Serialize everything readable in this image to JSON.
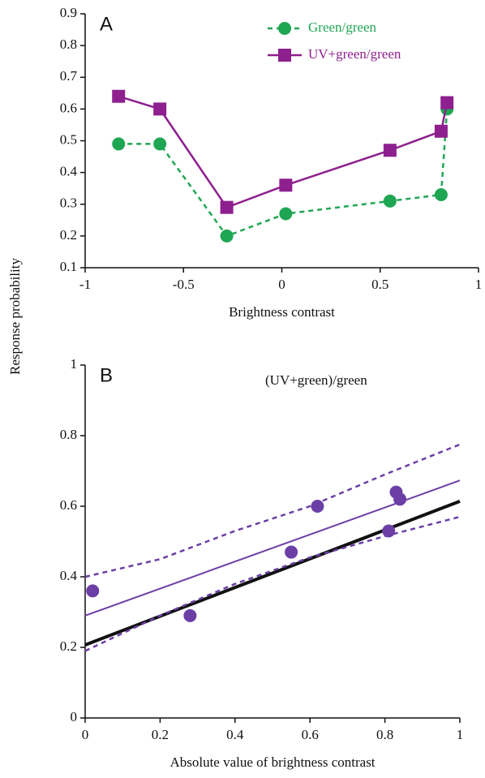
{
  "chart_data": [
    {
      "type": "line",
      "panel_label": "A",
      "ylabel": "Response probability",
      "xlabel": "Brightness contrast",
      "x": [
        -0.83,
        -0.62,
        -0.28,
        0.02,
        0.55,
        0.81,
        0.84
      ],
      "series": [
        {
          "name": "Green/green",
          "color": "#1fa653",
          "marker": "circle",
          "dash": true,
          "values": [
            0.49,
            0.49,
            0.2,
            0.27,
            0.31,
            0.33,
            0.6
          ]
        },
        {
          "name": "UV+green/green",
          "color": "#8e1f8e",
          "marker": "square",
          "dash": false,
          "values": [
            0.64,
            0.6,
            0.29,
            0.36,
            0.47,
            0.53,
            0.62
          ]
        }
      ],
      "xlim": [
        -1,
        1
      ],
      "xticks": [
        -1,
        -0.5,
        0,
        0.5,
        1
      ],
      "ylim": [
        0.1,
        0.9
      ],
      "yticks": [
        0.1,
        0.2,
        0.3,
        0.4,
        0.5,
        0.6,
        0.7,
        0.8,
        0.9
      ],
      "legend": "upper right"
    },
    {
      "type": "scatter",
      "panel_label": "B",
      "annotation": "(UV+green)/green",
      "xlabel": "Absolute value of brightness contrast",
      "x": [
        0.02,
        0.28,
        0.55,
        0.62,
        0.81,
        0.83,
        0.84
      ],
      "values": [
        0.36,
        0.29,
        0.47,
        0.6,
        0.53,
        0.64,
        0.62
      ],
      "color": "#6b3fa6",
      "lines": [
        {
          "color": "#6b3fa6",
          "dash": false,
          "width": 2,
          "x": [
            0,
            1
          ],
          "values": [
            0.29,
            0.673
          ]
        },
        {
          "color": "#111111",
          "dash": false,
          "width": 4,
          "x": [
            0,
            1
          ],
          "values": [
            0.207,
            0.614
          ]
        },
        {
          "color": "#6b3fa6",
          "dash": true,
          "width": 2.5,
          "x": [
            0,
            0.2,
            0.4,
            0.6,
            0.8,
            1
          ],
          "values": [
            0.4,
            0.45,
            0.53,
            0.6,
            0.69,
            0.775
          ]
        },
        {
          "color": "#6b3fa6",
          "dash": true,
          "width": 2.5,
          "x": [
            0,
            0.2,
            0.4,
            0.6,
            0.8,
            1
          ],
          "values": [
            0.19,
            0.29,
            0.38,
            0.455,
            0.515,
            0.57
          ]
        }
      ],
      "xlim": [
        0,
        1
      ],
      "xticks": [
        0,
        0.2,
        0.4,
        0.6,
        0.8,
        1
      ],
      "ylim": [
        0,
        1
      ],
      "yticks": [
        0,
        0.2,
        0.4,
        0.6,
        0.8,
        1
      ]
    }
  ]
}
